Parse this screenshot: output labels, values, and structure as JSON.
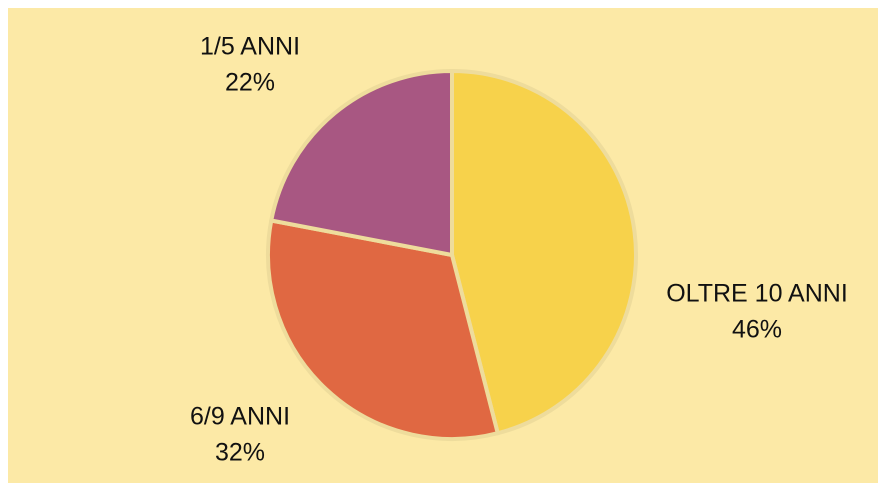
{
  "chart_data": {
    "type": "pie",
    "categories": [
      "OLTRE 10 ANNI",
      "6/9 ANNI",
      "1/5 ANNI"
    ],
    "values": [
      46,
      32,
      22
    ],
    "value_labels": [
      "46%",
      "32%",
      "22%"
    ],
    "colors": [
      "#f7d24b",
      "#e06842",
      "#a85782"
    ]
  }
}
